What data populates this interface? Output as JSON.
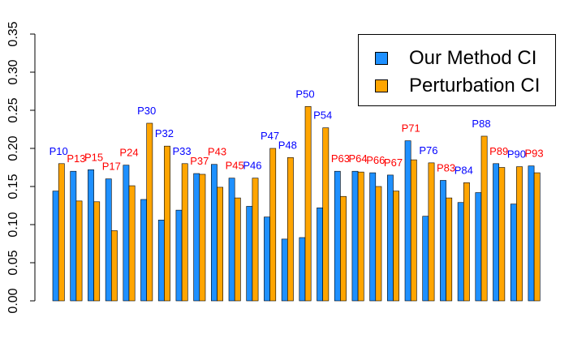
{
  "chart_data": {
    "type": "bar",
    "categories": [
      "P10",
      "P13",
      "P15",
      "P17",
      "P24",
      "P30",
      "P32",
      "P33",
      "P37",
      "P43",
      "P45",
      "P46",
      "P47",
      "P48",
      "P50",
      "P54",
      "P63",
      "P64",
      "P66",
      "P67",
      "P71",
      "P76",
      "P83",
      "P84",
      "P88",
      "P89",
      "P90",
      "P93"
    ],
    "series": [
      {
        "name": "Our Method CI",
        "color": "#1e90ff",
        "values": [
          0.144,
          0.17,
          0.172,
          0.16,
          0.178,
          0.133,
          0.106,
          0.119,
          0.167,
          0.179,
          0.161,
          0.124,
          0.11,
          0.081,
          0.083,
          0.122,
          0.17,
          0.17,
          0.168,
          0.165,
          0.21,
          0.111,
          0.158,
          0.129,
          0.142,
          0.18,
          0.127,
          0.177
        ]
      },
      {
        "name": "Perturbation CI",
        "color": "#ffa500",
        "values": [
          0.18,
          0.131,
          0.13,
          0.092,
          0.151,
          0.233,
          0.203,
          0.18,
          0.166,
          0.149,
          0.135,
          0.161,
          0.2,
          0.188,
          0.255,
          0.227,
          0.137,
          0.169,
          0.15,
          0.144,
          0.185,
          0.181,
          0.135,
          0.155,
          0.216,
          0.175,
          0.176,
          0.168
        ]
      }
    ],
    "label_colors": [
      "blue",
      "red",
      "red",
      "red",
      "red",
      "blue",
      "blue",
      "blue",
      "red",
      "red",
      "red",
      "blue",
      "blue",
      "blue",
      "blue",
      "blue",
      "red",
      "red",
      "red",
      "red",
      "red",
      "blue",
      "red",
      "blue",
      "blue",
      "red",
      "blue",
      "red"
    ],
    "label_color_map": {
      "blue": "#0000ff",
      "red": "#ff0000"
    },
    "y_ticks": [
      "0.00",
      "0.05",
      "0.10",
      "0.15",
      "0.20",
      "0.25",
      "0.30",
      "0.35"
    ],
    "ylim": [
      0,
      0.35
    ],
    "legend_position": "top-right",
    "grid": false
  }
}
